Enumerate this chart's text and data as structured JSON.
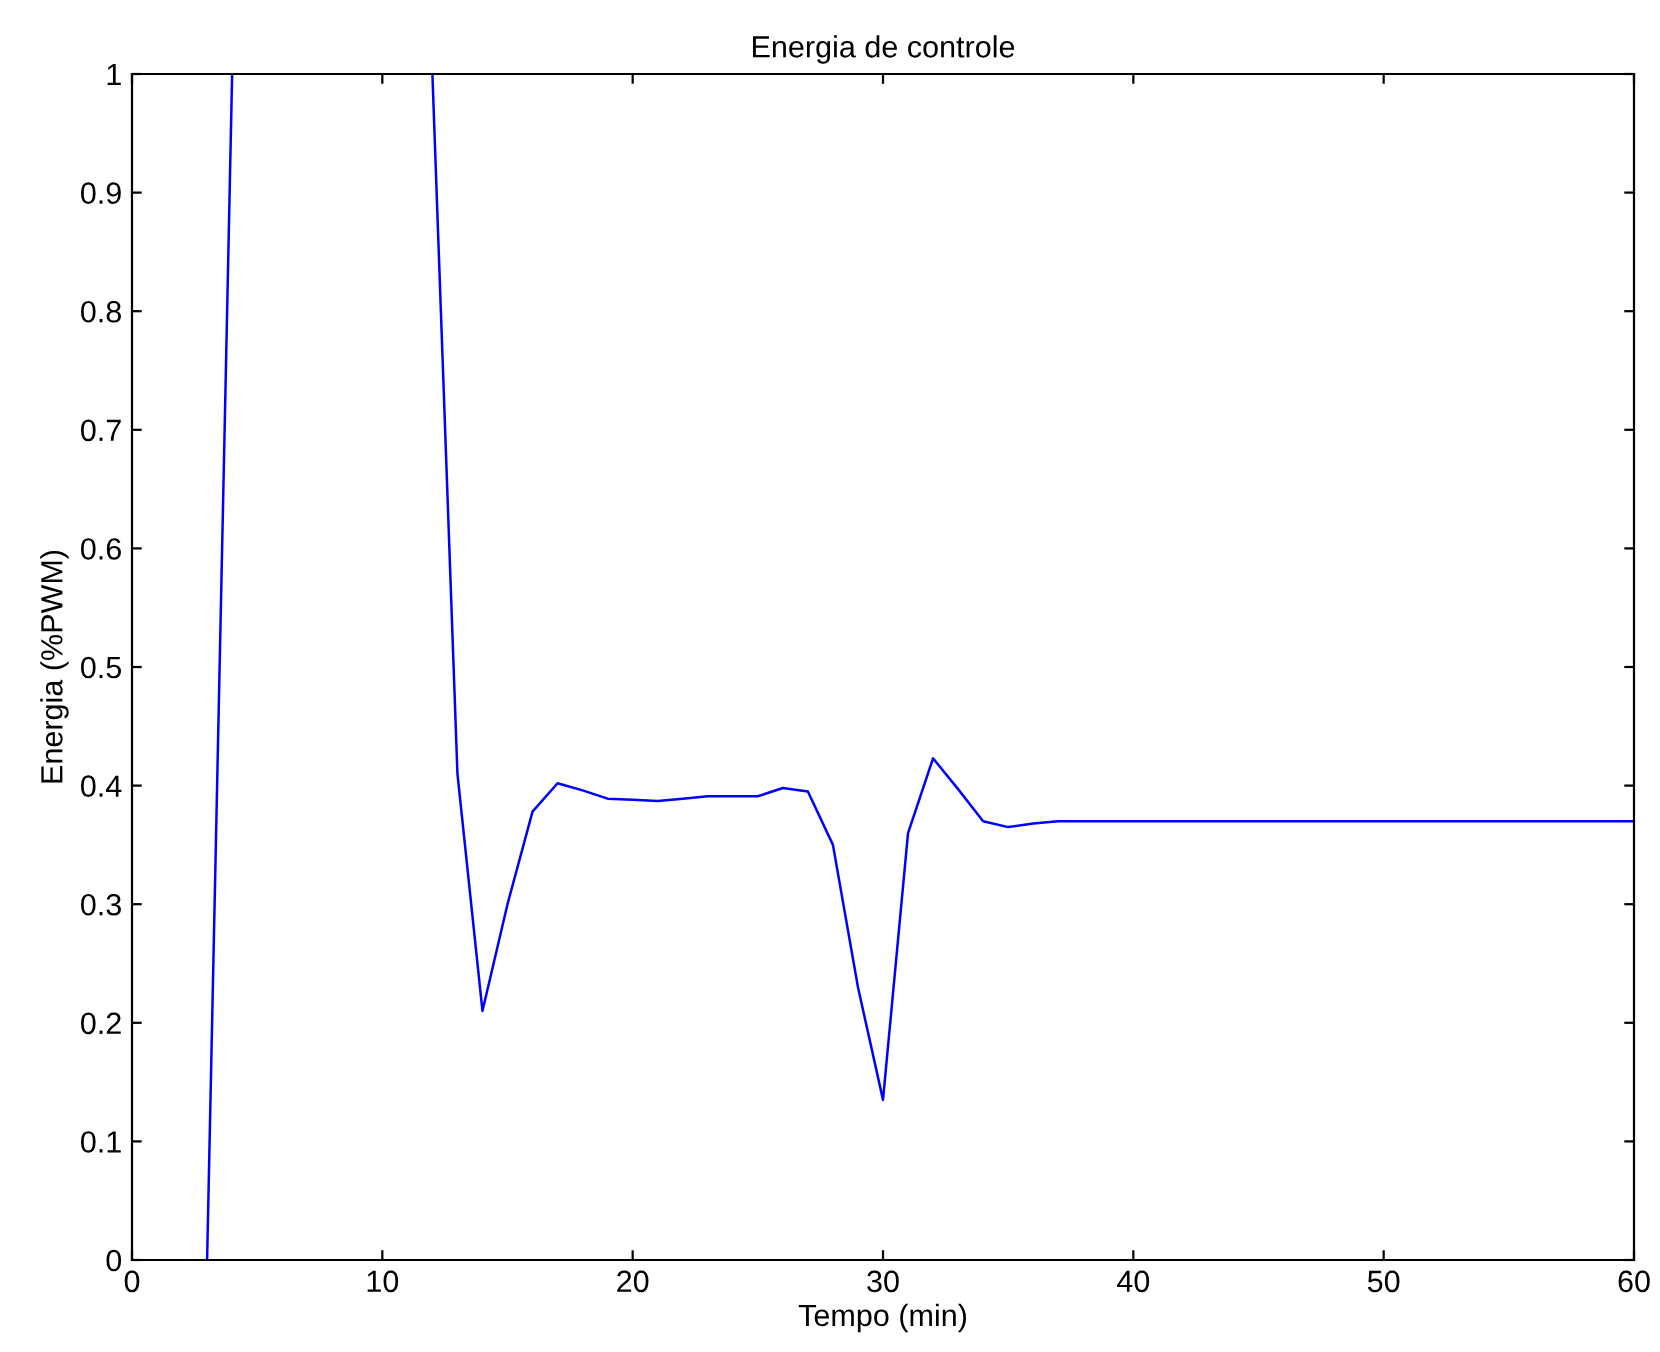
{
  "chart_data": {
    "type": "line",
    "title": "Energia de controle",
    "xlabel": "Tempo (min)",
    "ylabel": "Energia (%PWM)",
    "x": [
      3,
      4,
      5,
      11,
      12,
      13,
      14,
      15,
      16,
      17,
      18,
      19,
      20,
      21,
      22,
      23,
      24,
      25,
      26,
      27,
      28,
      29,
      30,
      31,
      32,
      33,
      34,
      35,
      36,
      37,
      60
    ],
    "series": [
      {
        "color": "#0000ff",
        "values": [
          0,
          1,
          null,
          null,
          1,
          0.41,
          0.21,
          0.3,
          0.378,
          0.402,
          0.396,
          0.389,
          0.388,
          0.387,
          0.389,
          0.391,
          0.391,
          0.391,
          0.398,
          0.395,
          0.35,
          0.23,
          0.135,
          0.36,
          0.423,
          0.397,
          0.37,
          0.365,
          0.368,
          0.37,
          0.37
        ]
      }
    ],
    "xlim": [
      0,
      60
    ],
    "xticks": [
      0,
      10,
      20,
      30,
      40,
      50,
      60
    ],
    "ylim": [
      0,
      1
    ],
    "yticks": [
      0,
      0.1,
      0.2,
      0.3,
      0.4,
      0.5,
      0.6,
      0.7,
      0.8,
      0.9,
      1
    ],
    "grid": false
  }
}
